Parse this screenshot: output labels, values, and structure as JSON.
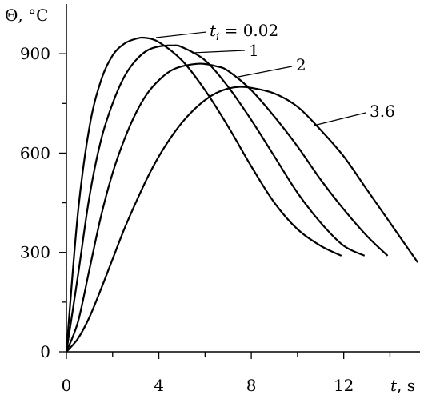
{
  "chart_data": {
    "type": "line",
    "ylabel": "Θ, °C",
    "xlabel_var": "t",
    "xlabel_unit": ", s",
    "xlim": [
      0,
      15.3
    ],
    "ylim": [
      0,
      1050
    ],
    "x_ticks": [
      0,
      4,
      8,
      12
    ],
    "x_tick_labels": [
      "0",
      "4",
      "8",
      "12"
    ],
    "x_minor_ticks": [
      2,
      6,
      10,
      14
    ],
    "y_ticks": [
      0,
      300,
      600,
      900
    ],
    "y_tick_labels": [
      "0",
      "300",
      "600",
      "900"
    ],
    "y_minor_ticks": [
      150,
      450,
      750
    ],
    "grid": false,
    "legend_prefix_var": "t",
    "legend_prefix_sub": "i",
    "series": [
      {
        "name": "0.02",
        "label_text": "= 0.02",
        "label_has_prefix": true,
        "x": [
          0,
          0.5,
          1,
          1.5,
          2,
          2.5,
          3,
          3.4,
          4,
          5,
          6,
          7,
          8,
          9,
          10,
          11,
          11.9
        ],
        "y": [
          0,
          420,
          680,
          820,
          895,
          930,
          945,
          948,
          935,
          880,
          790,
          680,
          560,
          450,
          370,
          320,
          290
        ]
      },
      {
        "name": "1",
        "label_text": "1",
        "label_has_prefix": false,
        "x": [
          0,
          0.5,
          1,
          1.5,
          2,
          2.5,
          3,
          3.5,
          4,
          4.6,
          5,
          6,
          7,
          8,
          9,
          10,
          11,
          12,
          12.9
        ],
        "y": [
          0,
          230,
          470,
          640,
          750,
          830,
          880,
          910,
          922,
          925,
          920,
          880,
          800,
          700,
          590,
          480,
          390,
          320,
          290
        ]
      },
      {
        "name": "2",
        "label_text": "2",
        "label_has_prefix": false,
        "x": [
          0,
          0.5,
          1,
          1.5,
          2,
          2.5,
          3,
          3.5,
          4,
          4.5,
          5,
          5.8,
          6.5,
          7,
          8,
          9,
          10,
          11,
          12,
          13,
          13.9
        ],
        "y": [
          0,
          90,
          250,
          410,
          540,
          640,
          720,
          780,
          820,
          848,
          862,
          870,
          862,
          848,
          790,
          710,
          620,
          520,
          430,
          350,
          290
        ]
      },
      {
        "name": "3.6",
        "label_text": "3.6",
        "label_has_prefix": false,
        "x": [
          0,
          0.5,
          1,
          1.5,
          2,
          2.5,
          3,
          3.5,
          4,
          4.5,
          5,
          5.5,
          6,
          6.5,
          7,
          7.5,
          8,
          9,
          10,
          11,
          12,
          13,
          14,
          15.2
        ],
        "y": [
          0,
          40,
          105,
          190,
          280,
          370,
          450,
          525,
          590,
          645,
          692,
          730,
          760,
          782,
          795,
          800,
          797,
          780,
          740,
          670,
          590,
          490,
          390,
          270
        ]
      }
    ]
  }
}
